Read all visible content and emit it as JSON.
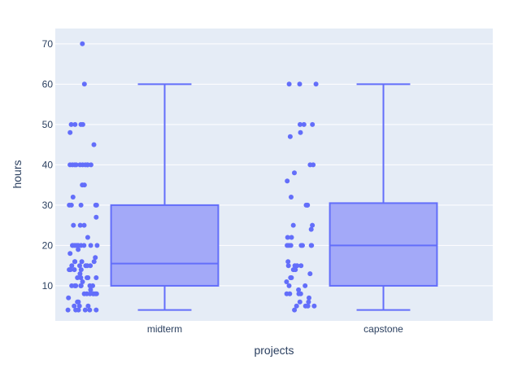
{
  "chart_data": {
    "type": "box",
    "title": "",
    "xlabel": "projects",
    "ylabel": "hours",
    "categories": [
      "midterm",
      "capstone"
    ],
    "ylim": [
      1.3,
      73.8
    ],
    "yticks": [
      10,
      20,
      30,
      40,
      50,
      60,
      70
    ],
    "grid": true,
    "colors": {
      "plot_bg": "#e5ecf6",
      "grid": "#ffffff",
      "box_fill": "#a3a9f8",
      "box_line": "#636efa",
      "point": "#636efa",
      "text": "#2a3f5f"
    },
    "boxes": [
      {
        "category": "midterm",
        "min": 4,
        "q1": 10,
        "median": 15.5,
        "q3": 30,
        "max": 60,
        "outliers": [
          70
        ]
      },
      {
        "category": "capstone",
        "min": 4,
        "q1": 10,
        "median": 20,
        "q3": 30.5,
        "max": 60,
        "outliers": []
      }
    ],
    "points": {
      "midterm": [
        70,
        60,
        50,
        50,
        50,
        50,
        48,
        45,
        40,
        40,
        40,
        40,
        40,
        40,
        40,
        40,
        40,
        40,
        35,
        35,
        32,
        30,
        30,
        30,
        30,
        30,
        27,
        25,
        25,
        25,
        22,
        20,
        20,
        20,
        20,
        20,
        20,
        20,
        20,
        20,
        20,
        19,
        18,
        17,
        16,
        16,
        16,
        16,
        15,
        15,
        15,
        15,
        15,
        14,
        14,
        14,
        14,
        13,
        12,
        12,
        12,
        12,
        12,
        11,
        10,
        10,
        10,
        10,
        10,
        10,
        10,
        10,
        10,
        9,
        8,
        8,
        8,
        8,
        8,
        8,
        8,
        7,
        6,
        6,
        5,
        5,
        5,
        4,
        4,
        4,
        4,
        4,
        4
      ],
      "capstone": [
        60,
        60,
        60,
        50,
        50,
        50,
        48,
        47,
        40,
        40,
        38,
        36,
        32,
        30,
        30,
        30,
        25,
        25,
        24,
        22,
        22,
        20,
        20,
        20,
        20,
        20,
        20,
        20,
        16,
        15,
        15,
        15,
        15,
        14,
        14,
        13,
        12,
        12,
        11,
        10,
        10,
        9,
        8,
        8,
        8,
        8,
        7,
        6,
        6,
        5,
        5,
        5,
        5,
        4
      ]
    }
  }
}
